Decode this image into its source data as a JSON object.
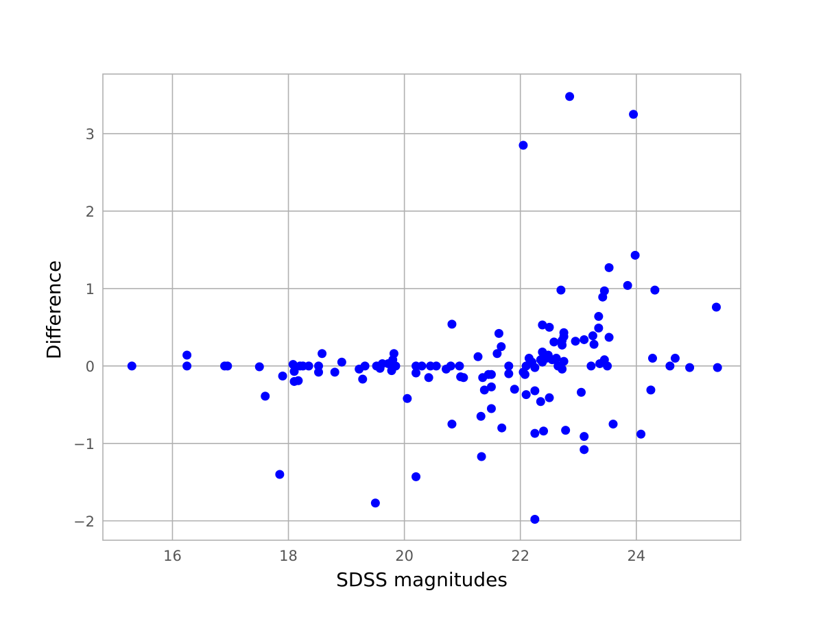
{
  "chart_data": {
    "type": "scatter",
    "xlabel": "SDSS magnitudes",
    "ylabel": "Difference",
    "xlim": [
      14.8,
      25.8
    ],
    "ylim": [
      -2.25,
      3.77
    ],
    "xticks": [
      16,
      18,
      20,
      22,
      24
    ],
    "yticks": [
      -2,
      -1,
      0,
      1,
      2,
      3
    ],
    "grid": true,
    "marker_color": "#0000ff",
    "series": [
      {
        "points": [
          [
            15.3,
            0.0
          ],
          [
            16.25,
            0.14
          ],
          [
            16.25,
            0.0
          ],
          [
            16.9,
            0.0
          ],
          [
            16.95,
            0.0
          ],
          [
            17.5,
            -0.01
          ],
          [
            17.6,
            -0.39
          ],
          [
            17.85,
            -1.4
          ],
          [
            17.9,
            -0.13
          ],
          [
            18.08,
            0.02
          ],
          [
            18.1,
            -0.07
          ],
          [
            18.1,
            -0.2
          ],
          [
            18.17,
            -0.19
          ],
          [
            18.2,
            0.0
          ],
          [
            18.25,
            0.0
          ],
          [
            18.35,
            0.0
          ],
          [
            18.52,
            0.0
          ],
          [
            18.52,
            -0.08
          ],
          [
            18.58,
            0.16
          ],
          [
            18.8,
            -0.08
          ],
          [
            18.92,
            0.05
          ],
          [
            19.22,
            -0.04
          ],
          [
            19.28,
            -0.17
          ],
          [
            19.32,
            0.0
          ],
          [
            19.5,
            -1.77
          ],
          [
            19.52,
            0.0
          ],
          [
            19.58,
            -0.03
          ],
          [
            19.62,
            0.03
          ],
          [
            19.72,
            0.03
          ],
          [
            19.78,
            -0.06
          ],
          [
            19.8,
            0.08
          ],
          [
            19.82,
            0.16
          ],
          [
            19.85,
            0.0
          ],
          [
            20.05,
            -0.42
          ],
          [
            20.2,
            -1.43
          ],
          [
            20.2,
            0.0
          ],
          [
            20.2,
            -0.09
          ],
          [
            20.3,
            0.0
          ],
          [
            20.42,
            -0.15
          ],
          [
            20.45,
            0.0
          ],
          [
            20.55,
            0.0
          ],
          [
            20.72,
            -0.04
          ],
          [
            20.8,
            0.0
          ],
          [
            20.82,
            0.54
          ],
          [
            20.82,
            -0.75
          ],
          [
            20.95,
            0.0
          ],
          [
            20.97,
            -0.14
          ],
          [
            21.02,
            -0.15
          ],
          [
            21.27,
            0.12
          ],
          [
            21.32,
            -0.65
          ],
          [
            21.33,
            -1.17
          ],
          [
            21.35,
            -0.15
          ],
          [
            21.38,
            -0.31
          ],
          [
            21.45,
            -0.11
          ],
          [
            21.5,
            -0.11
          ],
          [
            21.5,
            -0.27
          ],
          [
            21.5,
            -0.55
          ],
          [
            21.6,
            0.16
          ],
          [
            21.63,
            0.42
          ],
          [
            21.67,
            0.25
          ],
          [
            21.68,
            -0.8
          ],
          [
            21.8,
            0.0
          ],
          [
            21.8,
            -0.1
          ],
          [
            21.9,
            -0.3
          ],
          [
            22.05,
            2.85
          ],
          [
            22.05,
            -0.08
          ],
          [
            22.08,
            -0.11
          ],
          [
            22.1,
            0.0
          ],
          [
            22.1,
            -0.37
          ],
          [
            22.15,
            0.1
          ],
          [
            22.2,
            0.05
          ],
          [
            22.25,
            -0.02
          ],
          [
            22.25,
            -0.32
          ],
          [
            22.25,
            -0.87
          ],
          [
            22.25,
            -1.98
          ],
          [
            22.35,
            0.08
          ],
          [
            22.35,
            -0.46
          ],
          [
            22.38,
            0.53
          ],
          [
            22.38,
            0.18
          ],
          [
            22.38,
            0.05
          ],
          [
            22.4,
            -0.84
          ],
          [
            22.45,
            0.1
          ],
          [
            22.48,
            0.14
          ],
          [
            22.5,
            0.5
          ],
          [
            22.5,
            -0.41
          ],
          [
            22.55,
            0.08
          ],
          [
            22.58,
            0.31
          ],
          [
            22.62,
            0.1
          ],
          [
            22.65,
            0.0
          ],
          [
            22.7,
            0.98
          ],
          [
            22.72,
            0.27
          ],
          [
            22.72,
            0.33
          ],
          [
            22.72,
            -0.04
          ],
          [
            22.75,
            0.43
          ],
          [
            22.75,
            0.38
          ],
          [
            22.75,
            0.06
          ],
          [
            22.78,
            -0.83
          ],
          [
            22.85,
            3.48
          ],
          [
            22.95,
            0.32
          ],
          [
            23.05,
            -0.34
          ],
          [
            23.1,
            -0.91
          ],
          [
            23.1,
            -1.08
          ],
          [
            23.1,
            0.34
          ],
          [
            23.22,
            0.0
          ],
          [
            23.25,
            0.39
          ],
          [
            23.27,
            0.28
          ],
          [
            23.35,
            0.64
          ],
          [
            23.35,
            0.49
          ],
          [
            23.37,
            0.03
          ],
          [
            23.42,
            0.89
          ],
          [
            23.45,
            0.97
          ],
          [
            23.45,
            0.08
          ],
          [
            23.5,
            0.0
          ],
          [
            23.53,
            1.27
          ],
          [
            23.53,
            0.37
          ],
          [
            23.6,
            -0.75
          ],
          [
            23.85,
            1.04
          ],
          [
            23.95,
            3.25
          ],
          [
            23.98,
            1.43
          ],
          [
            24.08,
            -0.88
          ],
          [
            24.25,
            -0.31
          ],
          [
            24.28,
            0.1
          ],
          [
            24.32,
            0.98
          ],
          [
            24.58,
            0.0
          ],
          [
            24.67,
            0.1
          ],
          [
            24.92,
            -0.02
          ],
          [
            25.38,
            0.76
          ],
          [
            25.4,
            -0.02
          ]
        ]
      }
    ]
  }
}
